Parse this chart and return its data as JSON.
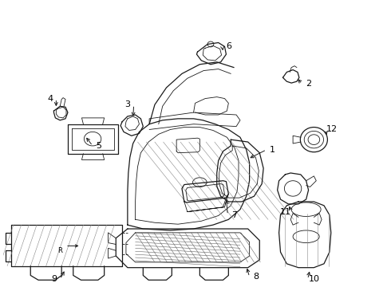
{
  "background_color": "#ffffff",
  "line_color": "#1a1a1a",
  "label_color": "#000000",
  "hatch_color": "#888888",
  "mesh_color": "#666666"
}
